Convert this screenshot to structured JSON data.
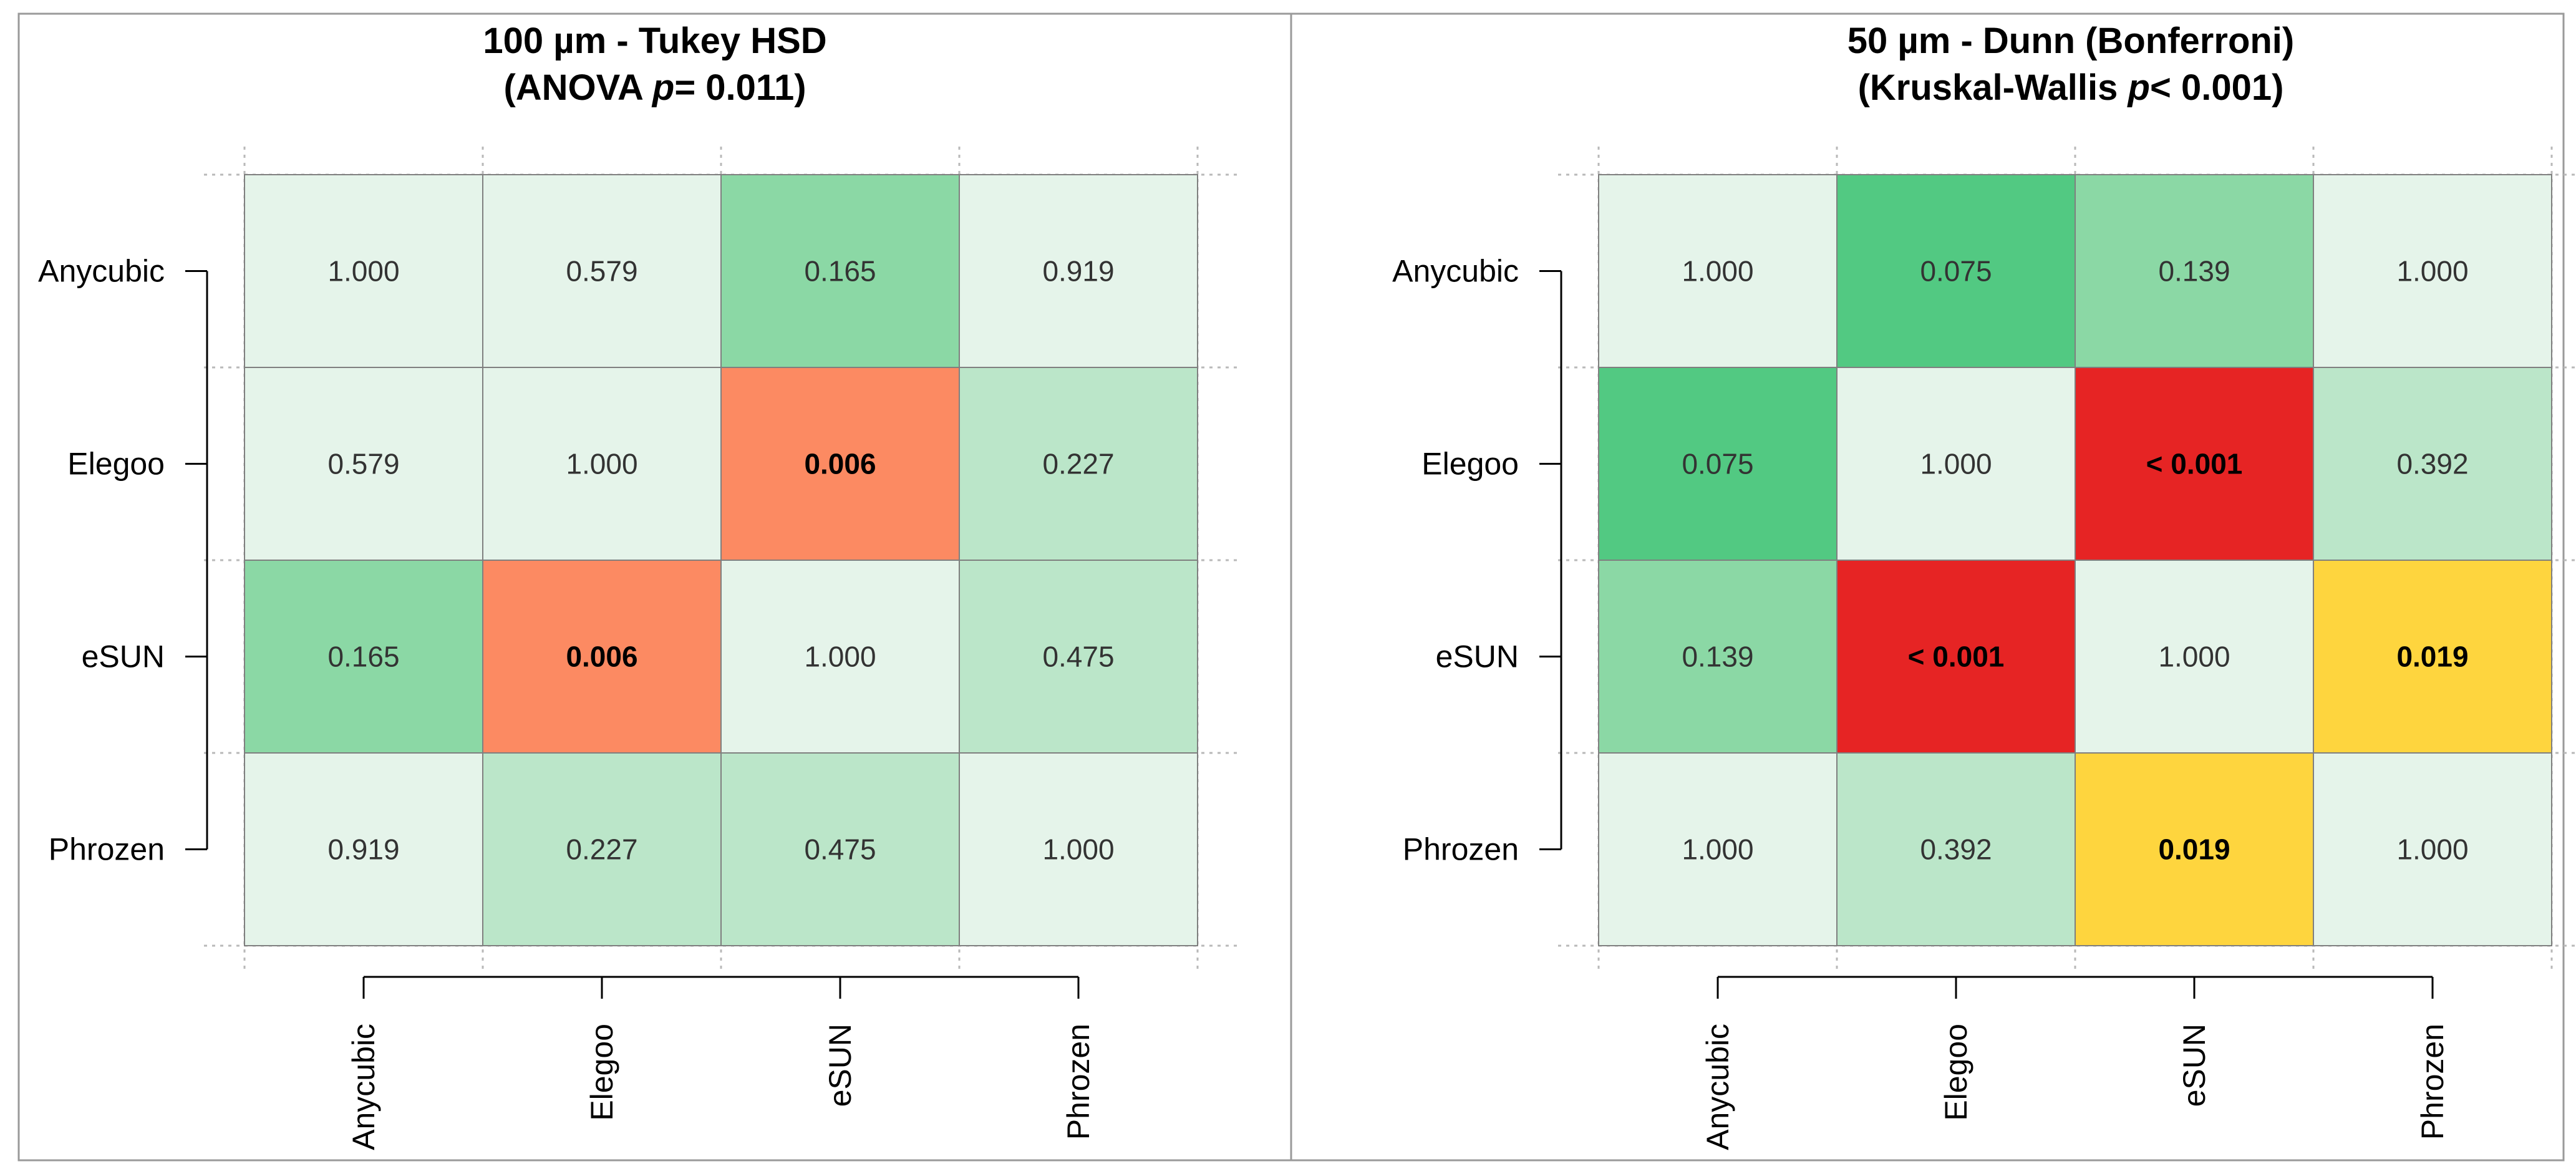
{
  "chart_data": [
    {
      "type": "heatmap",
      "title_line1": "100 µm - Tukey HSD",
      "title_line2_prefix": "(ANOVA ",
      "title_line2_p": "p",
      "title_line2_suffix": "= 0.011)",
      "row_labels": [
        "Anycubic",
        "Elegoo",
        "eSUN",
        "Phrozen"
      ],
      "col_labels": [
        "Anycubic",
        "Elegoo",
        "eSUN",
        "Phrozen"
      ],
      "values": [
        [
          1.0,
          0.579,
          0.165,
          0.919
        ],
        [
          0.579,
          1.0,
          0.006,
          0.227
        ],
        [
          0.165,
          0.006,
          1.0,
          0.475
        ],
        [
          0.919,
          0.227,
          0.475,
          1.0
        ]
      ],
      "labels": [
        [
          "1.000",
          "0.579",
          "0.165",
          "0.919"
        ],
        [
          "0.579",
          "1.000",
          "0.006",
          "0.227"
        ],
        [
          "0.165",
          "0.006",
          "1.000",
          "0.475"
        ],
        [
          "0.919",
          "0.227",
          "0.475",
          "1.000"
        ]
      ],
      "significant": [
        [
          false,
          false,
          false,
          false
        ],
        [
          false,
          false,
          true,
          false
        ],
        [
          false,
          true,
          false,
          false
        ],
        [
          false,
          false,
          false,
          false
        ]
      ],
      "colors": [
        [
          "#e5f4ea",
          "#e5f4ea",
          "#8bd8a5",
          "#e5f4ea"
        ],
        [
          "#e5f4ea",
          "#e5f4ea",
          "#fc8a62",
          "#bbe6c9"
        ],
        [
          "#8bd8a5",
          "#fc8a62",
          "#e5f4ea",
          "#bbe6c9"
        ],
        [
          "#e5f4ea",
          "#bbe6c9",
          "#bbe6c9",
          "#e5f4ea"
        ]
      ]
    },
    {
      "type": "heatmap",
      "title_line1": "50 µm - Dunn (Bonferroni)",
      "title_line2_prefix": "(Kruskal-Wallis ",
      "title_line2_p": "p",
      "title_line2_suffix": "< 0.001)",
      "row_labels": [
        "Anycubic",
        "Elegoo",
        "eSUN",
        "Phrozen"
      ],
      "col_labels": [
        "Anycubic",
        "Elegoo",
        "eSUN",
        "Phrozen"
      ],
      "values": [
        [
          1.0,
          0.075,
          0.139,
          1.0
        ],
        [
          0.075,
          1.0,
          0.001,
          0.392
        ],
        [
          0.139,
          0.001,
          1.0,
          0.019
        ],
        [
          1.0,
          0.392,
          0.019,
          1.0
        ]
      ],
      "labels": [
        [
          "1.000",
          "0.075",
          "0.139",
          "1.000"
        ],
        [
          "0.075",
          "1.000",
          "< 0.001",
          "0.392"
        ],
        [
          "0.139",
          "< 0.001",
          "1.000",
          "0.019"
        ],
        [
          "1.000",
          "0.392",
          "0.019",
          "1.000"
        ]
      ],
      "significant": [
        [
          false,
          false,
          false,
          false
        ],
        [
          false,
          false,
          true,
          false
        ],
        [
          false,
          true,
          false,
          true
        ],
        [
          false,
          false,
          true,
          false
        ]
      ],
      "colors": [
        [
          "#e5f4ea",
          "#52c982",
          "#8bd8a5",
          "#e5f4ea"
        ],
        [
          "#52c982",
          "#e5f4ea",
          "#e62424",
          "#bbe6c9"
        ],
        [
          "#8bd8a5",
          "#e62424",
          "#e5f4ea",
          "#fed53e"
        ],
        [
          "#e5f4ea",
          "#bbe6c9",
          "#fed53e",
          "#e5f4ea"
        ]
      ]
    }
  ]
}
